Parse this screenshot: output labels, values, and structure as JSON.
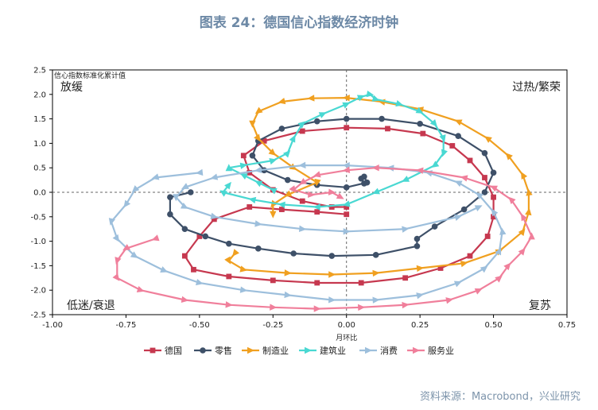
{
  "title": "图表 24：德国信心指数经济时钟",
  "source": "资料来源：Macrobond，兴业研究",
  "chart_data": {
    "type": "line",
    "ylabel": "信心指数标准化累计值",
    "xlabel": "月环比",
    "xlim": [
      -1.0,
      0.75
    ],
    "ylim": [
      -2.5,
      2.5
    ],
    "xticks": [
      "-1.00",
      "-0.75",
      "-0.50",
      "-0.25",
      "0.00",
      "0.25",
      "0.50",
      "0.75"
    ],
    "yticks": [
      "2.5",
      "2.0",
      "1.5",
      "1.0",
      "0.5",
      "0.0",
      "-0.5",
      "-1.0",
      "-1.5",
      "-2.0",
      "-2.5"
    ],
    "quadrants": {
      "top_left": "放缓",
      "top_right": "过热/繁荣",
      "bottom_left": "低迷/衰退",
      "bottom_right": "复苏"
    },
    "reference_lines": {
      "x": 0,
      "y": 0,
      "style": "dashed"
    },
    "legend_position": "bottom",
    "series": [
      {
        "name": "德国",
        "color": "#c6384f",
        "marker": "square",
        "points": [
          [
            0.0,
            -0.45
          ],
          [
            -0.1,
            -0.4
          ],
          [
            -0.22,
            -0.35
          ],
          [
            -0.33,
            -0.3
          ],
          [
            -0.45,
            -0.55
          ],
          [
            -0.5,
            -0.9
          ],
          [
            -0.55,
            -1.3
          ],
          [
            -0.52,
            -1.58
          ],
          [
            -0.4,
            -1.72
          ],
          [
            -0.25,
            -1.8
          ],
          [
            -0.1,
            -1.85
          ],
          [
            0.05,
            -1.85
          ],
          [
            0.2,
            -1.75
          ],
          [
            0.32,
            -1.55
          ],
          [
            0.42,
            -1.3
          ],
          [
            0.48,
            -0.9
          ],
          [
            0.5,
            -0.5
          ],
          [
            0.5,
            -0.1
          ],
          [
            0.47,
            0.3
          ],
          [
            0.42,
            0.65
          ],
          [
            0.36,
            0.95
          ],
          [
            0.26,
            1.2
          ],
          [
            0.14,
            1.3
          ],
          [
            0.0,
            1.32
          ],
          [
            -0.15,
            1.25
          ],
          [
            -0.28,
            1.05
          ],
          [
            -0.35,
            0.75
          ],
          [
            -0.33,
            0.4
          ],
          [
            -0.25,
            0.05
          ],
          [
            -0.15,
            -0.18
          ],
          [
            -0.05,
            -0.3
          ],
          [
            0.0,
            -0.3
          ]
        ]
      },
      {
        "name": "零售",
        "color": "#3e5068",
        "marker": "circle",
        "points": [
          [
            0.06,
            0.18
          ],
          [
            0.05,
            0.28
          ],
          [
            0.06,
            0.32
          ],
          [
            0.07,
            0.2
          ],
          [
            0.0,
            0.1
          ],
          [
            -0.1,
            0.15
          ],
          [
            -0.2,
            0.25
          ],
          [
            -0.28,
            0.45
          ],
          [
            -0.32,
            0.75
          ],
          [
            -0.3,
            1.05
          ],
          [
            -0.22,
            1.3
          ],
          [
            -0.1,
            1.45
          ],
          [
            0.0,
            1.5
          ],
          [
            0.12,
            1.5
          ],
          [
            0.25,
            1.4
          ],
          [
            0.38,
            1.15
          ],
          [
            0.47,
            0.8
          ],
          [
            0.5,
            0.4
          ],
          [
            0.47,
            0.0
          ],
          [
            0.4,
            -0.35
          ],
          [
            0.3,
            -0.7
          ],
          [
            0.24,
            -0.95
          ],
          [
            0.24,
            -1.1
          ],
          [
            0.1,
            -1.28
          ],
          [
            -0.05,
            -1.3
          ],
          [
            -0.18,
            -1.25
          ],
          [
            -0.3,
            -1.15
          ],
          [
            -0.4,
            -1.05
          ],
          [
            -0.48,
            -0.9
          ],
          [
            -0.55,
            -0.75
          ],
          [
            -0.6,
            -0.45
          ],
          [
            -0.6,
            -0.1
          ],
          [
            -0.53,
            0.0
          ]
        ]
      },
      {
        "name": "制造业",
        "color": "#f0a020",
        "marker": "triangle",
        "points": [
          [
            -0.38,
            -1.25
          ],
          [
            -0.4,
            -1.4
          ],
          [
            -0.35,
            -1.58
          ],
          [
            -0.2,
            -1.65
          ],
          [
            -0.05,
            -1.68
          ],
          [
            0.1,
            -1.65
          ],
          [
            0.25,
            -1.55
          ],
          [
            0.4,
            -1.45
          ],
          [
            0.52,
            -1.2
          ],
          [
            0.6,
            -0.8
          ],
          [
            0.62,
            -0.4
          ],
          [
            0.62,
            0.0
          ],
          [
            0.6,
            0.35
          ],
          [
            0.55,
            0.75
          ],
          [
            0.48,
            1.1
          ],
          [
            0.38,
            1.45
          ],
          [
            0.25,
            1.7
          ],
          [
            0.12,
            1.85
          ],
          [
            0.0,
            1.93
          ],
          [
            -0.12,
            1.92
          ],
          [
            -0.22,
            1.85
          ],
          [
            -0.3,
            1.65
          ],
          [
            -0.32,
            1.4
          ],
          [
            -0.3,
            1.1
          ],
          [
            -0.25,
            0.8
          ],
          [
            -0.18,
            0.5
          ],
          [
            -0.1,
            0.2
          ],
          [
            -0.2,
            -0.05
          ],
          [
            -0.25,
            -0.25
          ],
          [
            -0.25,
            -0.45
          ]
        ]
      },
      {
        "name": "建筑业",
        "color": "#49d8d2",
        "marker": "triangle",
        "points": [
          [
            -0.25,
            0.05
          ],
          [
            -0.3,
            0.2
          ],
          [
            -0.35,
            0.35
          ],
          [
            -0.4,
            0.5
          ],
          [
            -0.35,
            0.55
          ],
          [
            -0.25,
            0.65
          ],
          [
            -0.2,
            0.8
          ],
          [
            -0.18,
            1.1
          ],
          [
            -0.15,
            1.4
          ],
          [
            -0.08,
            1.6
          ],
          [
            0.0,
            1.8
          ],
          [
            0.05,
            1.95
          ],
          [
            0.08,
            2.0
          ],
          [
            0.1,
            1.9
          ],
          [
            0.18,
            1.8
          ],
          [
            0.25,
            1.65
          ],
          [
            0.3,
            1.4
          ],
          [
            0.33,
            1.1
          ],
          [
            0.33,
            0.8
          ],
          [
            0.3,
            0.55
          ],
          [
            0.2,
            0.25
          ],
          [
            0.1,
            0.0
          ],
          [
            0.0,
            -0.25
          ],
          [
            -0.1,
            -0.3
          ],
          [
            -0.22,
            -0.25
          ],
          [
            -0.32,
            -0.15
          ],
          [
            -0.42,
            0.0
          ],
          [
            -0.4,
            0.15
          ]
        ]
      },
      {
        "name": "消费",
        "color": "#9dbfdc",
        "marker": "triangle",
        "points": [
          [
            -0.5,
            0.4
          ],
          [
            -0.65,
            0.3
          ],
          [
            -0.72,
            0.05
          ],
          [
            -0.75,
            -0.25
          ],
          [
            -0.8,
            -0.6
          ],
          [
            -0.78,
            -0.95
          ],
          [
            -0.72,
            -1.3
          ],
          [
            -0.62,
            -1.6
          ],
          [
            -0.5,
            -1.85
          ],
          [
            -0.35,
            -2.0
          ],
          [
            -0.2,
            -2.1
          ],
          [
            -0.05,
            -2.2
          ],
          [
            0.1,
            -2.2
          ],
          [
            0.25,
            -2.1
          ],
          [
            0.38,
            -1.85
          ],
          [
            0.47,
            -1.55
          ],
          [
            0.52,
            -1.2
          ],
          [
            0.53,
            -0.8
          ],
          [
            0.5,
            -0.4
          ],
          [
            0.45,
            -0.05
          ],
          [
            0.38,
            0.2
          ],
          [
            0.28,
            0.4
          ],
          [
            0.15,
            0.5
          ],
          [
            0.0,
            0.55
          ],
          [
            -0.15,
            0.55
          ],
          [
            -0.3,
            0.45
          ],
          [
            -0.45,
            0.3
          ],
          [
            -0.55,
            0.1
          ],
          [
            -0.58,
            -0.1
          ],
          [
            -0.55,
            -0.3
          ],
          [
            -0.45,
            -0.5
          ],
          [
            -0.3,
            -0.65
          ],
          [
            -0.15,
            -0.75
          ],
          [
            0.0,
            -0.8
          ],
          [
            0.2,
            -0.75
          ],
          [
            0.38,
            -0.5
          ],
          [
            0.45,
            -0.3
          ]
        ]
      },
      {
        "name": "服务业",
        "color": "#f07f9b",
        "marker": "triangle",
        "points": [
          [
            -0.65,
            -0.95
          ],
          [
            -0.75,
            -1.15
          ],
          [
            -0.78,
            -1.4
          ],
          [
            -0.78,
            -1.75
          ],
          [
            -0.7,
            -2.0
          ],
          [
            -0.55,
            -2.2
          ],
          [
            -0.4,
            -2.3
          ],
          [
            -0.25,
            -2.35
          ],
          [
            -0.1,
            -2.38
          ],
          [
            0.05,
            -2.35
          ],
          [
            0.2,
            -2.3
          ],
          [
            0.35,
            -2.2
          ],
          [
            0.45,
            -2.0
          ],
          [
            0.52,
            -1.75
          ],
          [
            0.55,
            -1.5
          ],
          [
            0.6,
            -1.2
          ],
          [
            0.63,
            -0.9
          ],
          [
            0.6,
            -0.5
          ],
          [
            0.56,
            -0.15
          ],
          [
            0.5,
            0.1
          ],
          [
            0.4,
            0.3
          ],
          [
            0.25,
            0.45
          ],
          [
            0.1,
            0.5
          ],
          [
            0.0,
            0.45
          ],
          [
            -0.1,
            0.35
          ],
          [
            -0.15,
            0.2
          ],
          [
            -0.18,
            0.05
          ],
          [
            -0.12,
            -0.05
          ],
          [
            -0.05,
            0.0
          ],
          [
            -0.02,
            -0.1
          ]
        ]
      }
    ]
  }
}
